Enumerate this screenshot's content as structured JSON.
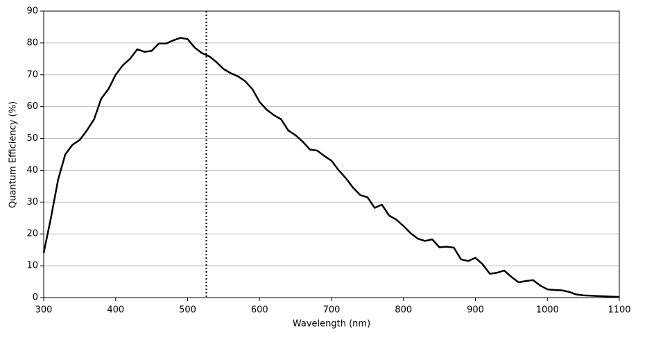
{
  "chart_data": {
    "type": "line",
    "xlabel": "Wavelength (nm)",
    "ylabel": "Quantum Efficiency (%)",
    "x": [
      300,
      310,
      320,
      330,
      340,
      350,
      360,
      370,
      380,
      390,
      400,
      410,
      420,
      430,
      440,
      450,
      460,
      470,
      480,
      490,
      500,
      510,
      520,
      530,
      540,
      550,
      560,
      570,
      580,
      590,
      600,
      610,
      620,
      630,
      640,
      650,
      660,
      670,
      680,
      690,
      700,
      710,
      720,
      730,
      740,
      750,
      760,
      770,
      780,
      790,
      800,
      810,
      820,
      830,
      840,
      850,
      860,
      870,
      880,
      890,
      900,
      910,
      920,
      930,
      940,
      950,
      960,
      970,
      980,
      990,
      1000,
      1010,
      1020,
      1030,
      1040,
      1050,
      1060,
      1070,
      1080,
      1090,
      1100
    ],
    "values": [
      14,
      25,
      37,
      45,
      48,
      49.5,
      52.5,
      56,
      62.5,
      65.5,
      70,
      73,
      75,
      78,
      77.2,
      77.5,
      79.8,
      79.8,
      80.8,
      81.6,
      81.2,
      78.5,
      76.8,
      75.8,
      74,
      71.8,
      70.5,
      69.5,
      68,
      65.5,
      61.5,
      59,
      57.3,
      56,
      52.5,
      51,
      49,
      46.5,
      46.2,
      44.5,
      43,
      40,
      37.5,
      34.5,
      32.2,
      31.5,
      28.2,
      29.2,
      25.8,
      24.5,
      22.5,
      20.2,
      18.5,
      17.8,
      18.3,
      15.8,
      16,
      15.7,
      12,
      11.5,
      12.5,
      10.5,
      7.5,
      7.8,
      8.5,
      6.5,
      4.8,
      5.2,
      5.5,
      3.8,
      2.6,
      2.4,
      2.3,
      1.8,
      1,
      0.7,
      0.6,
      0.5,
      0.4,
      0.3,
      0.2
    ],
    "color": "#000000",
    "vline": 526,
    "xlim": [
      300,
      1100
    ],
    "xticks": [
      300,
      400,
      500,
      600,
      700,
      800,
      900,
      1000,
      1100
    ],
    "ylim": [
      0,
      90
    ],
    "yticks": [
      0,
      10,
      20,
      30,
      40,
      50,
      60,
      70,
      80,
      90
    ],
    "grid": "y"
  }
}
